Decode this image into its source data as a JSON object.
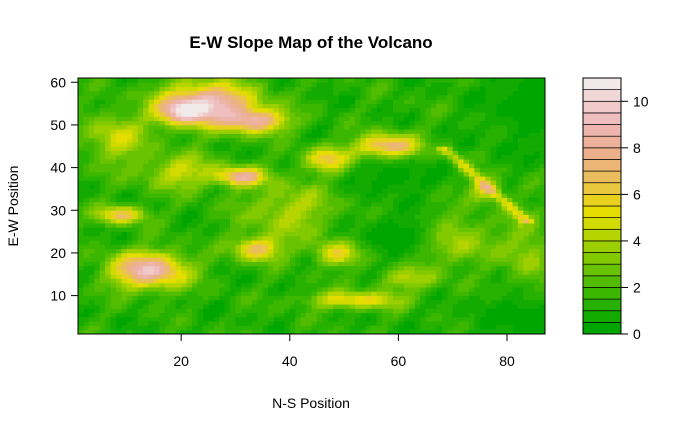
{
  "chart_data": {
    "type": "heatmap",
    "title": "E-W Slope Map of the Volcano",
    "xlabel": "N-S Position",
    "ylabel": "E-W Position",
    "xlim": [
      1,
      87
    ],
    "ylim": [
      1,
      61
    ],
    "x_ticks": [
      20,
      40,
      60,
      80
    ],
    "y_ticks": [
      10,
      20,
      30,
      40,
      50,
      60
    ],
    "colorbar": {
      "range": [
        0,
        11
      ],
      "ticks": [
        0,
        2,
        4,
        6,
        8,
        10
      ],
      "levels": [
        0,
        0.5,
        1,
        1.5,
        2,
        2.5,
        3,
        3.5,
        4,
        4.5,
        5,
        5.5,
        6,
        6.5,
        7,
        7.5,
        8,
        8.5,
        9,
        9.5,
        10,
        10.5,
        11
      ],
      "colors": [
        "#00A600",
        "#13AB00",
        "#27B100",
        "#3CB700",
        "#52BD00",
        "#6AC300",
        "#82C900",
        "#9CCF00",
        "#B6D500",
        "#D2DB00",
        "#E6DD00",
        "#E8D21E",
        "#E9C840",
        "#EABE5C",
        "#EBB676",
        "#ECB18A",
        "#EDB29C",
        "#EEB5AE",
        "#EFBEBE",
        "#F0C9C9",
        "#F1D8D8",
        "#F2EAEA"
      ]
    },
    "features": [
      {
        "x": 25,
        "y": 55,
        "sx": 6,
        "sy": 3.5,
        "amp": 8.5
      },
      {
        "x": 34,
        "y": 51,
        "sx": 4,
        "sy": 2,
        "amp": 6.5
      },
      {
        "x": 20,
        "y": 53,
        "sx": 3,
        "sy": 2,
        "amp": 5
      },
      {
        "x": 58,
        "y": 45,
        "sx": 4,
        "sy": 2,
        "amp": 7
      },
      {
        "x": 31,
        "y": 38,
        "sx": 3,
        "sy": 1.5,
        "amp": 6.5
      },
      {
        "x": 14,
        "y": 16,
        "sx": 5,
        "sy": 3,
        "amp": 8
      },
      {
        "x": 9,
        "y": 29,
        "sx": 3,
        "sy": 1.5,
        "amp": 5.5
      },
      {
        "x": 34,
        "y": 21,
        "sx": 3,
        "sy": 2,
        "amp": 5.5
      },
      {
        "x": 49,
        "y": 20,
        "sx": 3,
        "sy": 2,
        "amp": 5
      },
      {
        "x": 47,
        "y": 42,
        "sx": 3,
        "sy": 2,
        "amp": 5
      },
      {
        "x": 52,
        "y": 9,
        "sx": 6,
        "sy": 1.5,
        "amp": 4.5
      },
      {
        "x": 76,
        "y": 35,
        "sx": 2,
        "sy": 2,
        "amp": 4
      },
      {
        "x": 8,
        "y": 47,
        "sx": 4,
        "sy": 4,
        "amp": 3.5
      },
      {
        "x": 70,
        "y": 23,
        "sx": 5,
        "sy": 4,
        "amp": 3.5
      },
      {
        "x": 40,
        "y": 30,
        "sx": 6,
        "sy": 5,
        "amp": 3
      },
      {
        "x": 20,
        "y": 39,
        "sx": 5,
        "sy": 3,
        "amp": 3.5
      },
      {
        "x": 62,
        "y": 14,
        "sx": 4,
        "sy": 2,
        "amp": 3
      },
      {
        "x": 84,
        "y": 20,
        "sx": 3,
        "sy": 6,
        "amp": 2.5
      }
    ],
    "baseline_regions": [
      {
        "x": 60,
        "y": 24,
        "sx": 6,
        "sy": 4
      },
      {
        "x": 59,
        "y": 38,
        "sx": 5,
        "sy": 3
      },
      {
        "x": 85,
        "y": 55,
        "sx": 6,
        "sy": 8
      },
      {
        "x": 84,
        "y": 5,
        "sx": 7,
        "sy": 4
      }
    ],
    "ridge": {
      "x0": 68,
      "y0": 45,
      "x1": 84,
      "y1": 27,
      "width": 0.8,
      "amp": 3.5
    }
  }
}
